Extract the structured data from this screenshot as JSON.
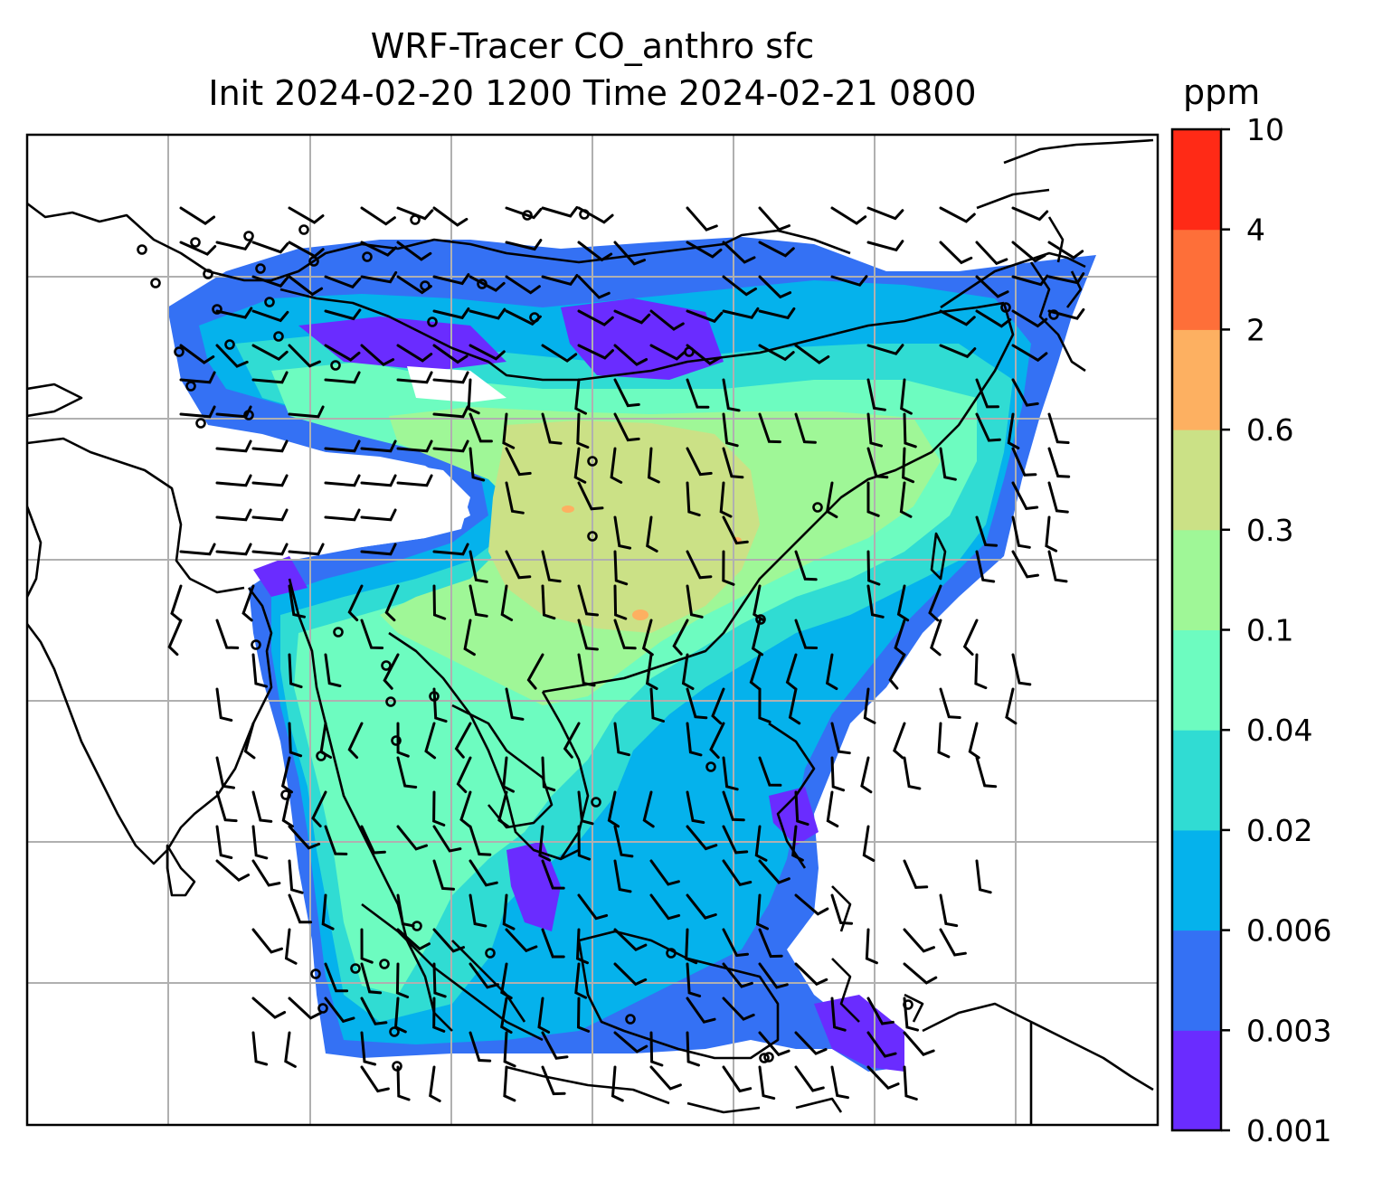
{
  "title": {
    "line1": "WRF-Tracer CO_anthro sfc",
    "line2": "Init 2024-02-20 1200 Time 2024-02-21 0800"
  },
  "colorbar": {
    "unit": "ppm",
    "levels": [
      "0.001",
      "0.003",
      "0.006",
      "0.02",
      "0.04",
      "0.1",
      "0.3",
      "0.6",
      "2",
      "4",
      "10"
    ],
    "colors": [
      "#6a2cff",
      "#3471f4",
      "#05b2ec",
      "#30dcd3",
      "#6dfcc0",
      "#9ff797",
      "#cbe186",
      "#fdb061",
      "#fe6f39",
      "#ff2a16"
    ]
  },
  "map_style": {
    "grid_color": "#b0b0b0",
    "coast_color": "#000000",
    "land_bg": "#ffffff"
  }
}
